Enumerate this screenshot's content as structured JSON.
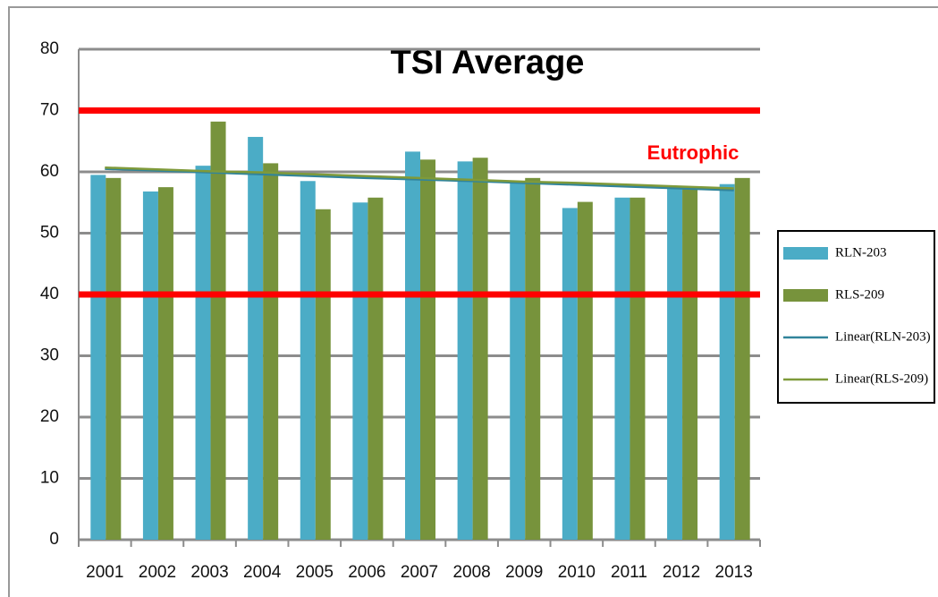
{
  "chart_data": {
    "type": "bar",
    "title": "TSI Average",
    "categories": [
      "2001",
      "2002",
      "2003",
      "2004",
      "2005",
      "2006",
      "2007",
      "2008",
      "2009",
      "2010",
      "2011",
      "2012",
      "2013"
    ],
    "series": [
      {
        "name": "RLN-203",
        "color": "#4bacc6",
        "values": [
          59.5,
          56.8,
          61,
          65.7,
          58.5,
          55,
          63.3,
          61.7,
          58.3,
          54.1,
          55.8,
          57.3,
          58
        ]
      },
      {
        "name": "RLS-209",
        "color": "#77933c",
        "values": [
          59,
          57.5,
          68.2,
          61.4,
          53.9,
          55.8,
          62,
          62.3,
          59,
          55.1,
          55.8,
          57.2,
          59
        ]
      },
      {
        "name": "Linear(RLN-203)",
        "type": "line",
        "color": "#31849b",
        "values": [
          60.5,
          60.2,
          59.9,
          59.6,
          59.3,
          59.0,
          58.75,
          58.5,
          58.2,
          57.9,
          57.6,
          57.3,
          57.0
        ]
      },
      {
        "name": "Linear(RLS-209)",
        "type": "line",
        "color": "#7f9a3a",
        "values": [
          60.7,
          60.4,
          60.1,
          59.9,
          59.6,
          59.3,
          59.0,
          58.7,
          58.4,
          58.2,
          57.9,
          57.6,
          57.3
        ]
      }
    ],
    "reference_lines": [
      {
        "value": 70,
        "color": "#ff0000"
      },
      {
        "value": 40,
        "color": "#ff0000"
      }
    ],
    "annotations": [
      {
        "text": "Eutrophic",
        "color": "#ff0000"
      }
    ],
    "ylim": [
      0,
      80
    ],
    "yticks": [
      0,
      10,
      20,
      30,
      40,
      50,
      60,
      70,
      80
    ],
    "grid": true,
    "legend": "right"
  }
}
